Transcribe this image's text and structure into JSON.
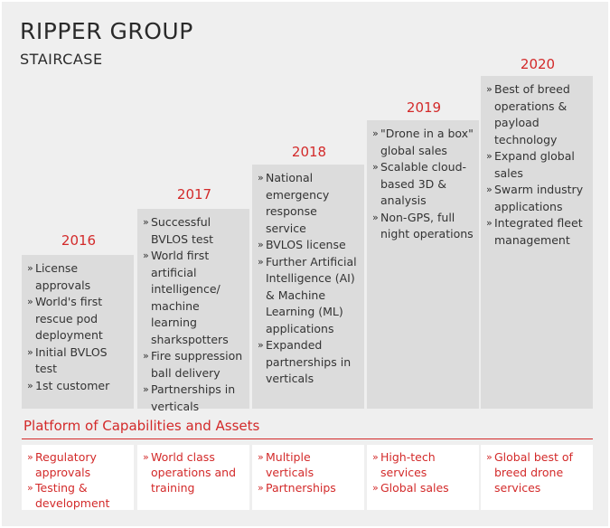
{
  "header": {
    "title": "RIPPER GROUP",
    "subtitle": "STAIRCASE"
  },
  "colors": {
    "accent_red": "#d32a2a",
    "panel_bg": "#efefef",
    "step_bg": "#dcdcdc",
    "text": "#333333"
  },
  "steps": [
    {
      "year": "2016",
      "items": [
        "License approvals",
        "World's first rescue pod deployment",
        "Initial BVLOS test",
        "1st customer"
      ]
    },
    {
      "year": "2017",
      "items": [
        "Successful BVLOS test",
        "World first artificial intelligence/ machine learning sharkspotters",
        "Fire suppression ball delivery",
        "Partnerships in verticals"
      ]
    },
    {
      "year": "2018",
      "items": [
        "National emergency response service",
        "BVLOS license",
        "Further Artificial Intelligence (AI) & Machine Learning (ML) applications",
        "Expanded partnerships in verticals"
      ]
    },
    {
      "year": "2019",
      "items": [
        "\"Drone in a box\" global sales",
        "Scalable cloud-based 3D & analysis",
        "Non-GPS, full night operations"
      ]
    },
    {
      "year": "2020",
      "items": [
        "Best of breed operations & payload technology",
        "Expand global sales",
        "Swarm industry applications",
        "Integrated fleet management"
      ]
    }
  ],
  "platform": {
    "title": "Platform of Capabilities and Assets",
    "columns": [
      {
        "items": [
          "Regulatory approvals",
          "Testing & development"
        ]
      },
      {
        "items": [
          "World class operations and training"
        ]
      },
      {
        "items": [
          "Multiple verticals",
          "Partnerships"
        ]
      },
      {
        "items": [
          "High-tech services",
          "Global sales"
        ]
      },
      {
        "items": [
          "Global best of breed drone services"
        ]
      }
    ]
  }
}
